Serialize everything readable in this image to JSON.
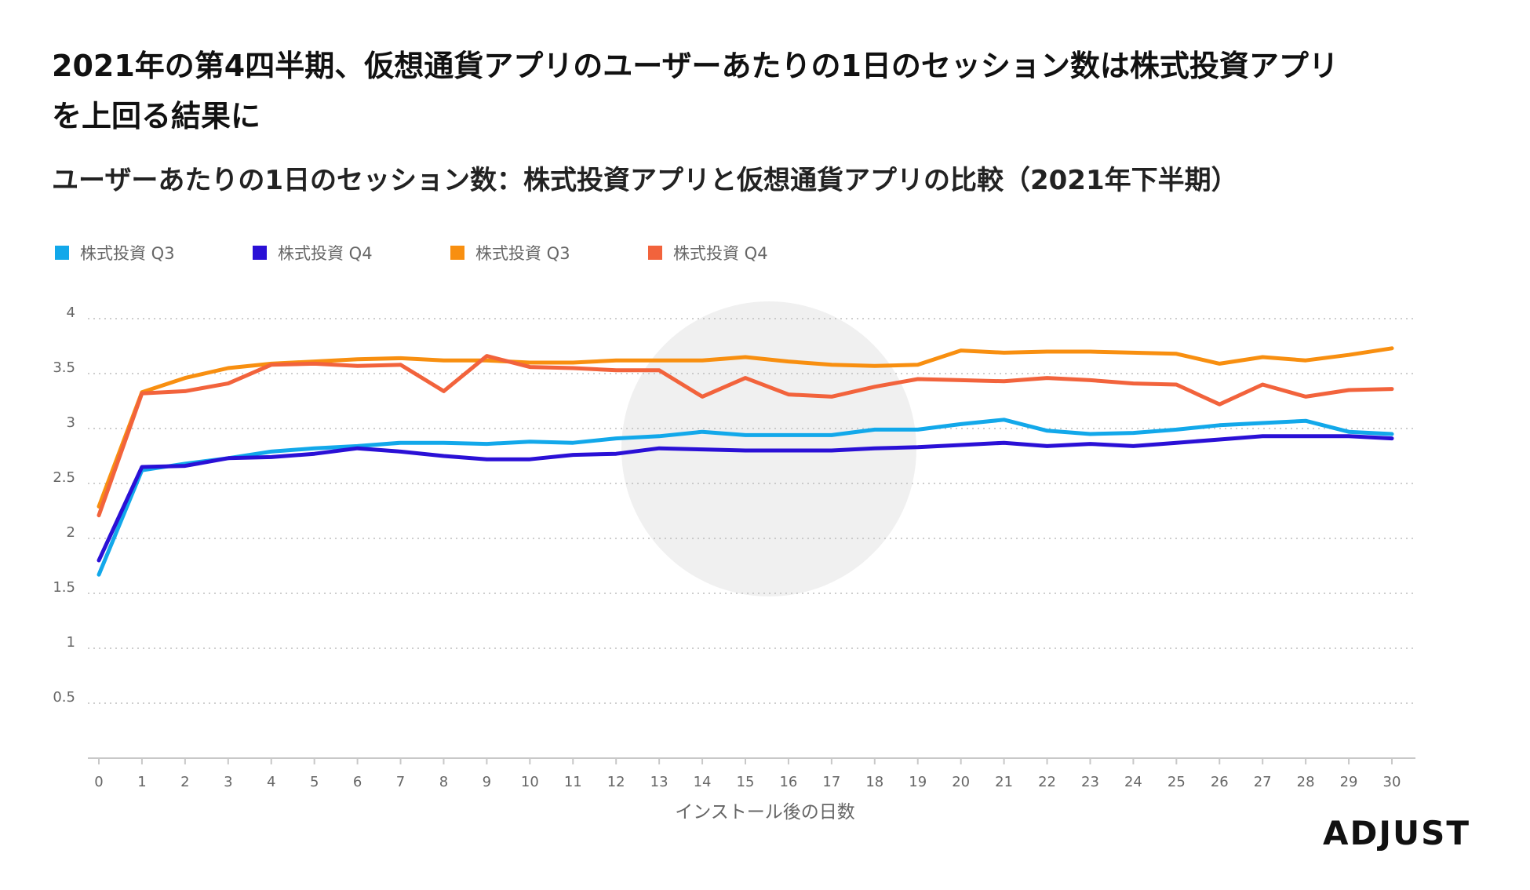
{
  "headline": "2021年の第4四半期、仮想通貨アプリのユーザーあたりの1日のセッション数は株式投資アプリを上回る結果に",
  "subtitle": "ユーザーあたりの1日のセッション数：株式投資アプリと仮想通貨アプリの比較（2021年下半期）",
  "brand": "ADJUST",
  "chart_data": {
    "type": "line",
    "title": "ユーザーあたりの1日のセッション数：株式投資アプリと仮想通貨アプリの比較（2021年下半期）",
    "xlabel": "インストール後の日数",
    "ylabel": "",
    "x": [
      0,
      1,
      2,
      3,
      4,
      5,
      6,
      7,
      8,
      9,
      10,
      11,
      12,
      13,
      14,
      15,
      16,
      17,
      18,
      19,
      20,
      21,
      22,
      23,
      24,
      25,
      26,
      27,
      28,
      29,
      30
    ],
    "yticks": [
      "4",
      "3.5",
      "3",
      "2.5",
      "2",
      "1.5",
      "1",
      "0.5"
    ],
    "ytick_values": [
      4,
      3.5,
      3,
      2.5,
      2,
      1.5,
      1,
      0.5
    ],
    "ylim": [
      0,
      4
    ],
    "grid": true,
    "legend_position": "top-left",
    "series": [
      {
        "name": "株式投資 Q3",
        "color": "#12a8ea",
        "values": [
          1.67,
          2.62,
          2.68,
          2.73,
          2.79,
          2.82,
          2.84,
          2.87,
          2.87,
          2.86,
          2.88,
          2.87,
          2.91,
          2.93,
          2.97,
          2.94,
          2.94,
          2.94,
          2.99,
          2.99,
          3.04,
          3.08,
          2.98,
          2.95,
          2.96,
          2.99,
          3.03,
          3.05,
          3.07,
          2.97,
          2.95
        ]
      },
      {
        "name": "株式投資 Q4",
        "color": "#2a10d6",
        "values": [
          1.8,
          2.65,
          2.66,
          2.73,
          2.74,
          2.77,
          2.82,
          2.79,
          2.75,
          2.72,
          2.72,
          2.76,
          2.77,
          2.82,
          2.81,
          2.8,
          2.8,
          2.8,
          2.82,
          2.83,
          2.85,
          2.87,
          2.84,
          2.86,
          2.84,
          2.87,
          2.9,
          2.93,
          2.93,
          2.93,
          2.91
        ]
      },
      {
        "name": "株式投資 Q3",
        "color": "#f88f10",
        "values": [
          2.29,
          3.33,
          3.46,
          3.55,
          3.59,
          3.61,
          3.63,
          3.64,
          3.62,
          3.62,
          3.6,
          3.6,
          3.62,
          3.62,
          3.62,
          3.65,
          3.61,
          3.58,
          3.57,
          3.58,
          3.71,
          3.69,
          3.7,
          3.7,
          3.69,
          3.68,
          3.59,
          3.65,
          3.62,
          3.67,
          3.73
        ]
      },
      {
        "name": "株式投資 Q4",
        "color": "#f2633c",
        "values": [
          2.21,
          3.32,
          3.34,
          3.41,
          3.58,
          3.59,
          3.57,
          3.58,
          3.34,
          3.66,
          3.56,
          3.55,
          3.53,
          3.53,
          3.29,
          3.46,
          3.31,
          3.29,
          3.38,
          3.45,
          3.44,
          3.43,
          3.46,
          3.44,
          3.41,
          3.4,
          3.22,
          3.4,
          3.29,
          3.35,
          3.36
        ]
      }
    ]
  }
}
